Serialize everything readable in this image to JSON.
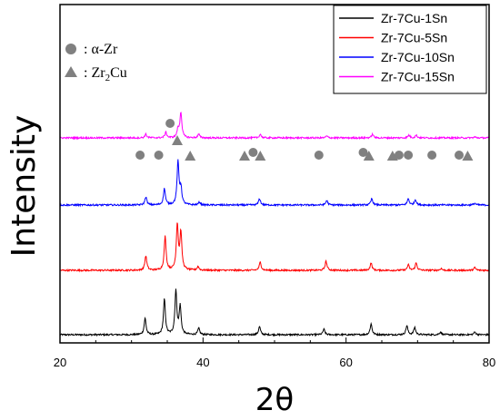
{
  "chart_data": {
    "type": "line",
    "xlabel": "2θ",
    "ylabel": "Intensity",
    "xlim": [
      20,
      80
    ],
    "x_ticks": [
      "20",
      "40",
      "60",
      "80"
    ],
    "legend_position": "top-right",
    "series": [
      {
        "name": "Zr-7Cu-1Sn",
        "color": "#000000",
        "peaks": [
          [
            31.9,
            1.8
          ],
          [
            34.6,
            3.9
          ],
          [
            36.2,
            4.8
          ],
          [
            36.8,
            3.1
          ],
          [
            39.4,
            0.7
          ],
          [
            47.9,
            0.9
          ],
          [
            56.9,
            0.6
          ],
          [
            63.5,
            1.2
          ],
          [
            68.5,
            1.0
          ],
          [
            69.6,
            0.8
          ],
          [
            73.2,
            0.3
          ],
          [
            78.0,
            0.3
          ]
        ]
      },
      {
        "name": "Zr-7Cu-5Sn",
        "color": "#ff0000",
        "peaks": [
          [
            32.0,
            1.6
          ],
          [
            34.7,
            3.7
          ],
          [
            36.4,
            5.0
          ],
          [
            36.9,
            4.1
          ],
          [
            39.3,
            0.4
          ],
          [
            48.0,
            0.9
          ],
          [
            57.2,
            1.0
          ],
          [
            63.5,
            0.8
          ],
          [
            68.7,
            0.6
          ],
          [
            69.8,
            0.8
          ],
          [
            73.3,
            0.2
          ],
          [
            78.0,
            0.3
          ]
        ]
      },
      {
        "name": "Zr-7Cu-10Sn",
        "color": "#0000ff",
        "peaks": [
          [
            32.0,
            0.9
          ],
          [
            34.6,
            1.8
          ],
          [
            36.5,
            4.7
          ],
          [
            36.9,
            1.8
          ],
          [
            39.5,
            0.3
          ],
          [
            47.9,
            0.7
          ],
          [
            57.3,
            0.5
          ],
          [
            63.6,
            0.7
          ],
          [
            68.7,
            0.7
          ],
          [
            69.7,
            0.6
          ],
          [
            78.0,
            0.2
          ]
        ]
      },
      {
        "name": "Zr-7Cu-15Sn",
        "color": "#ff00ff",
        "peaks": [
          [
            32.0,
            0.4
          ],
          [
            34.8,
            0.6
          ],
          [
            36.5,
            0.9
          ],
          [
            36.9,
            2.8
          ],
          [
            39.4,
            0.4
          ],
          [
            48.0,
            0.4
          ],
          [
            57.3,
            0.2
          ],
          [
            63.7,
            0.4
          ],
          [
            68.8,
            0.3
          ],
          [
            69.8,
            0.3
          ],
          [
            78.0,
            0.1
          ]
        ]
      }
    ],
    "phase_markers": {
      "alpha_zr": {
        "label": "α-Zr",
        "color": "#808080",
        "positions": [
          31.2,
          33.8,
          35.4,
          47.0,
          56.2,
          62.4,
          67.4,
          68.7,
          72.0,
          75.8
        ]
      },
      "zr2cu": {
        "label_base": "Zr",
        "label_sub": "2",
        "label_end": "Cu",
        "color": "#808080",
        "positions": [
          36.4,
          38.2,
          45.8,
          48.0,
          63.2,
          66.5,
          77.0
        ]
      }
    }
  }
}
